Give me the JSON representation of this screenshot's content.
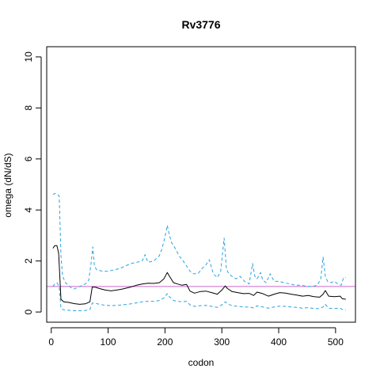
{
  "chart_data": {
    "type": "line",
    "title": "Rv3776",
    "xlabel": "codon",
    "ylabel": "omega (dN/dS)",
    "xlim": [
      -8,
      535
    ],
    "ylim": [
      -0.4,
      10.4
    ],
    "xticks": [
      "0",
      "100",
      "200",
      "300",
      "400",
      "500"
    ],
    "xtick_values": [
      0,
      100,
      200,
      300,
      400,
      500
    ],
    "yticks": [
      "0",
      "2",
      "4",
      "6",
      "8",
      "10"
    ],
    "ytick_values": [
      0,
      2,
      4,
      6,
      8,
      10
    ],
    "grid": false,
    "reference_line": {
      "y": 1.0,
      "color": "#cc66cc"
    },
    "series": [
      {
        "role": "estimate",
        "style": "solid",
        "color": "#000000",
        "x": [
          3,
          6,
          10,
          13,
          17,
          22,
          30,
          40,
          50,
          60,
          68,
          72,
          78,
          85,
          95,
          105,
          115,
          125,
          140,
          150,
          160,
          170,
          180,
          190,
          198,
          204,
          208,
          215,
          222,
          230,
          238,
          244,
          252,
          262,
          272,
          282,
          292,
          300,
          306,
          310,
          318,
          328,
          338,
          348,
          356,
          362,
          372,
          382,
          392,
          402,
          412,
          422,
          432,
          442,
          452,
          462,
          472,
          478,
          482,
          488,
          498,
          508,
          512,
          518
        ],
        "y": [
          2.5,
          2.6,
          2.6,
          2.3,
          0.5,
          0.4,
          0.38,
          0.33,
          0.3,
          0.32,
          0.4,
          0.98,
          0.97,
          0.92,
          0.86,
          0.83,
          0.86,
          0.9,
          0.98,
          1.05,
          1.1,
          1.13,
          1.12,
          1.15,
          1.3,
          1.55,
          1.4,
          1.15,
          1.1,
          1.05,
          1.08,
          0.82,
          0.74,
          0.8,
          0.82,
          0.76,
          0.7,
          0.86,
          1.02,
          0.92,
          0.8,
          0.76,
          0.72,
          0.73,
          0.65,
          0.78,
          0.72,
          0.62,
          0.7,
          0.76,
          0.74,
          0.7,
          0.66,
          0.62,
          0.65,
          0.6,
          0.58,
          0.7,
          0.84,
          0.62,
          0.6,
          0.62,
          0.52,
          0.5
        ]
      },
      {
        "role": "upper bound",
        "style": "dashed",
        "color": "#29a3e0",
        "x": [
          3,
          6,
          10,
          14,
          17,
          20,
          25,
          30,
          35,
          40,
          50,
          60,
          66,
          70,
          73,
          76,
          80,
          90,
          100,
          110,
          120,
          130,
          140,
          150,
          160,
          165,
          170,
          180,
          190,
          195,
          200,
          204,
          208,
          212,
          218,
          225,
          232,
          238,
          244,
          250,
          258,
          265,
          272,
          278,
          285,
          292,
          298,
          304,
          308,
          312,
          318,
          325,
          332,
          340,
          348,
          354,
          358,
          362,
          368,
          372,
          378,
          385,
          392,
          400,
          410,
          420,
          430,
          440,
          450,
          460,
          468,
          474,
          478,
          482,
          486,
          492,
          498,
          504,
          510,
          514,
          518
        ],
        "y": [
          4.6,
          4.65,
          4.62,
          4.55,
          2.2,
          1.4,
          1.15,
          1.05,
          0.95,
          0.9,
          1.0,
          1.1,
          1.25,
          1.9,
          2.55,
          1.8,
          1.65,
          1.6,
          1.6,
          1.65,
          1.7,
          1.8,
          1.9,
          1.95,
          2.0,
          2.25,
          1.95,
          2.0,
          2.2,
          2.5,
          2.95,
          3.4,
          3.0,
          2.7,
          2.5,
          2.2,
          2.0,
          1.8,
          1.6,
          1.5,
          1.5,
          1.7,
          1.85,
          2.05,
          1.5,
          1.35,
          1.6,
          2.9,
          1.7,
          1.5,
          1.4,
          1.3,
          1.4,
          1.2,
          1.1,
          1.9,
          1.4,
          1.3,
          1.55,
          1.25,
          1.15,
          1.5,
          1.2,
          1.2,
          1.15,
          1.1,
          1.05,
          1.05,
          1.0,
          1.0,
          1.05,
          1.3,
          2.15,
          1.4,
          1.2,
          1.15,
          1.2,
          1.1,
          1.05,
          1.35,
          1.35
        ]
      },
      {
        "role": "lower bound",
        "style": "dashed",
        "color": "#29a3e0",
        "x": [
          3,
          6,
          10,
          14,
          17,
          22,
          30,
          40,
          50,
          60,
          68,
          72,
          78,
          85,
          95,
          105,
          115,
          125,
          140,
          150,
          160,
          170,
          180,
          190,
          198,
          204,
          208,
          215,
          222,
          230,
          238,
          244,
          252,
          262,
          272,
          282,
          292,
          300,
          306,
          310,
          318,
          328,
          338,
          348,
          356,
          362,
          372,
          382,
          392,
          402,
          412,
          422,
          432,
          442,
          452,
          462,
          472,
          478,
          482,
          488,
          498,
          508,
          512,
          518
        ],
        "y": [
          1.0,
          1.1,
          1.15,
          1.0,
          0.15,
          0.08,
          0.07,
          0.05,
          0.05,
          0.06,
          0.1,
          0.35,
          0.34,
          0.3,
          0.26,
          0.25,
          0.26,
          0.28,
          0.32,
          0.36,
          0.4,
          0.42,
          0.42,
          0.45,
          0.55,
          0.72,
          0.6,
          0.45,
          0.42,
          0.4,
          0.42,
          0.28,
          0.22,
          0.25,
          0.26,
          0.22,
          0.18,
          0.28,
          0.4,
          0.32,
          0.25,
          0.22,
          0.2,
          0.2,
          0.16,
          0.24,
          0.2,
          0.15,
          0.2,
          0.23,
          0.22,
          0.2,
          0.18,
          0.15,
          0.17,
          0.14,
          0.13,
          0.2,
          0.3,
          0.15,
          0.14,
          0.15,
          0.1,
          0.08
        ]
      }
    ]
  }
}
